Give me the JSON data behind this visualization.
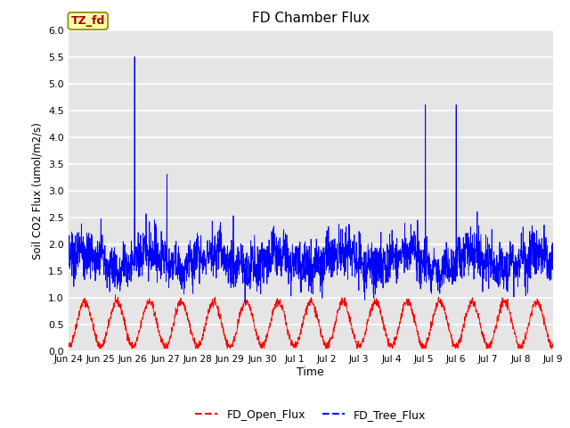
{
  "title": "FD Chamber Flux",
  "xlabel": "Time",
  "ylabel": "Soil CO2 Flux (umol/m2/s)",
  "ylim": [
    0.0,
    6.0
  ],
  "yticks": [
    0.0,
    0.5,
    1.0,
    1.5,
    2.0,
    2.5,
    3.0,
    3.5,
    4.0,
    4.5,
    5.0,
    5.5,
    6.0
  ],
  "bg_color": "#e5e5e5",
  "fig_color": "#ffffff",
  "line1_color": "#ff0000",
  "line2_color": "#0000ff",
  "line1_label": "FD_Open_Flux",
  "line2_label": "FD_Tree_Flux",
  "annotation_text": "TZ_fd",
  "annotation_bg": "#ffffaa",
  "annotation_fg": "#aa0000",
  "annotation_edge": "#888800",
  "n_points": 2160,
  "seed": 42,
  "xtick_positions": [
    0,
    1,
    2,
    3,
    4,
    5,
    6,
    7,
    8,
    9,
    10,
    11,
    12,
    13,
    14,
    15
  ],
  "xtick_labels": [
    "Jun 24",
    "Jun 25",
    "Jun 26",
    "Jun 27",
    "Jun 28",
    "Jun 29",
    "Jun 30",
    "Jul 1",
    "Jul 2",
    "Jul 3",
    "Jul 4",
    "Jul 5",
    "Jul 6",
    "Jul 7",
    "Jul 8",
    "Jul 9"
  ]
}
